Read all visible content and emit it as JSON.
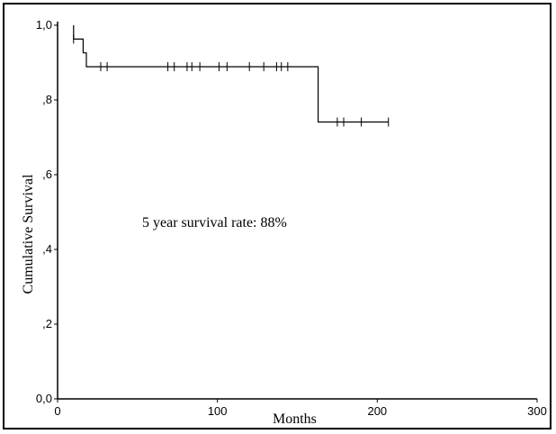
{
  "chart_data": {
    "type": "line",
    "xlabel": "Months",
    "ylabel": "Cumulative Survival",
    "xlim": [
      0,
      300
    ],
    "ylim": [
      0,
      1
    ],
    "x_ticks": [
      0,
      100,
      200,
      300
    ],
    "x_tick_labels": [
      "0",
      "100",
      "200",
      "300"
    ],
    "y_ticks": [
      0,
      0.2,
      0.4,
      0.6,
      0.8,
      1.0
    ],
    "y_tick_labels": [
      "0,0",
      ",2",
      ",4",
      ",6",
      ",8",
      "1,0"
    ],
    "annotation": "5 year survival rate: 88%",
    "grid": false,
    "series": [
      {
        "step_points": [
          [
            10,
            1.0
          ],
          [
            10,
            0.963
          ],
          [
            16,
            0.963
          ],
          [
            16,
            0.926
          ],
          [
            18,
            0.926
          ],
          [
            18,
            0.889
          ],
          [
            163,
            0.889
          ],
          [
            163,
            0.741
          ],
          [
            207,
            0.741
          ]
        ],
        "censored": [
          {
            "x": 10,
            "y": 0.963
          },
          {
            "x": 27,
            "y": 0.889
          },
          {
            "x": 31,
            "y": 0.889
          },
          {
            "x": 69,
            "y": 0.889
          },
          {
            "x": 73,
            "y": 0.889
          },
          {
            "x": 81,
            "y": 0.889
          },
          {
            "x": 84,
            "y": 0.889
          },
          {
            "x": 89,
            "y": 0.889
          },
          {
            "x": 101,
            "y": 0.889
          },
          {
            "x": 106,
            "y": 0.889
          },
          {
            "x": 120,
            "y": 0.889
          },
          {
            "x": 129,
            "y": 0.889
          },
          {
            "x": 137,
            "y": 0.889
          },
          {
            "x": 140,
            "y": 0.889
          },
          {
            "x": 144,
            "y": 0.889
          },
          {
            "x": 175,
            "y": 0.741
          },
          {
            "x": 179,
            "y": 0.741
          },
          {
            "x": 190,
            "y": 0.741
          },
          {
            "x": 207,
            "y": 0.741
          }
        ]
      }
    ]
  }
}
